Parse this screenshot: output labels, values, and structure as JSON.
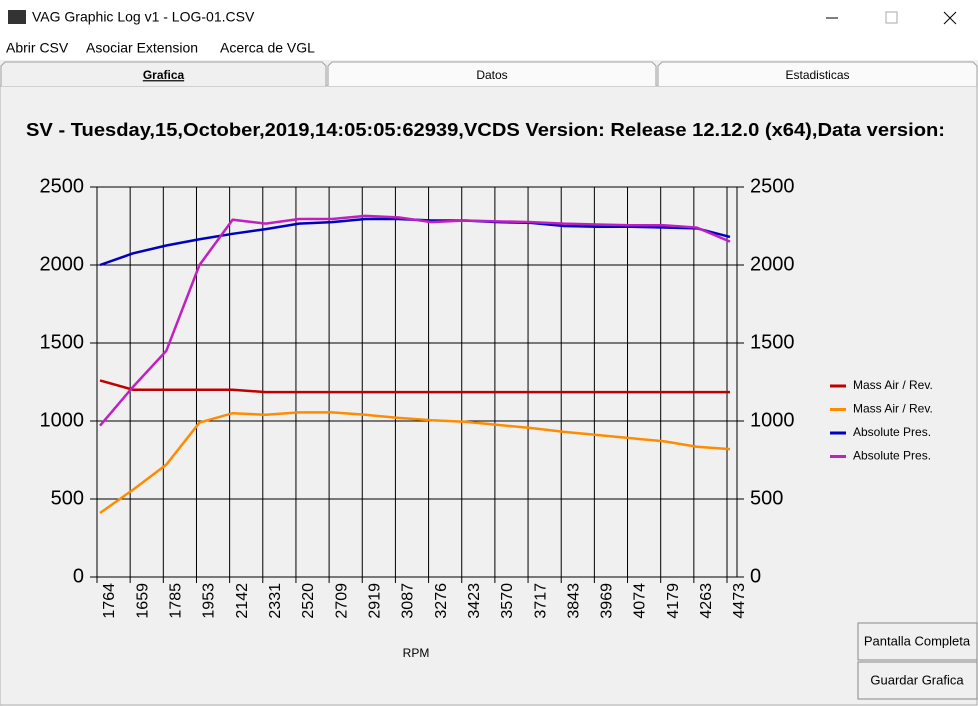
{
  "window": {
    "title": "VAG Graphic Log  v1 -  LOG-01.CSV"
  },
  "menu": [
    "Abrir CSV",
    "Asociar Extension",
    "Acerca de VGL"
  ],
  "tabs": [
    "Grafica",
    "Datos",
    "Estadisticas"
  ],
  "chart_data": {
    "type": "line",
    "title": "SV - Tuesday,15,October,2019,14:05:05:62939,VCDS Version: Release 12.12.0 (x64),Data version:",
    "xlabel": "RPM",
    "categories": [
      "1764",
      "1659",
      "1785",
      "1953",
      "2142",
      "2331",
      "2520",
      "2709",
      "2919",
      "3087",
      "3276",
      "3423",
      "3570",
      "3717",
      "3843",
      "3969",
      "4074",
      "4179",
      "4263",
      "4473"
    ],
    "series": [
      {
        "name": "Mass Air / Rev.",
        "color": "#c00000",
        "values": [
          1260,
          1200,
          1200,
          1200,
          1200,
          1185,
          1185,
          1185,
          1185,
          1185,
          1185,
          1185,
          1185,
          1185,
          1185,
          1185,
          1185,
          1185,
          1185,
          1185
        ]
      },
      {
        "name": "Mass Air / Rev.",
        "color": "#ff8c00",
        "values": [
          410,
          560,
          720,
          990,
          1050,
          1040,
          1055,
          1055,
          1040,
          1020,
          1005,
          995,
          975,
          955,
          930,
          910,
          890,
          870,
          835,
          820
        ]
      },
      {
        "name": "Absolute Pres.",
        "color": "#0000c0",
        "axis": "y2",
        "values": [
          2000,
          2075,
          2125,
          2165,
          2200,
          2230,
          2265,
          2275,
          2295,
          2295,
          2285,
          2285,
          2275,
          2270,
          2250,
          2245,
          2245,
          2240,
          2235,
          2180
        ]
      },
      {
        "name": "Absolute Pres.",
        "color": "#c020c0",
        "axis": "y2",
        "values": [
          970,
          1220,
          1450,
          2000,
          2290,
          2265,
          2295,
          2295,
          2315,
          2305,
          2275,
          2285,
          2280,
          2275,
          2265,
          2260,
          2255,
          2255,
          2240,
          2150
        ]
      }
    ],
    "ylim": [
      0,
      2500
    ],
    "yticks": [
      0,
      500,
      1000,
      1500,
      2000,
      2500
    ],
    "y2lim": [
      0,
      2500
    ],
    "y2ticks": [
      0,
      500,
      1000,
      1500,
      2000,
      2500
    ],
    "grid": true,
    "legend": "right"
  },
  "buttons": [
    "Pantalla Completa",
    "Guardar Grafica"
  ]
}
